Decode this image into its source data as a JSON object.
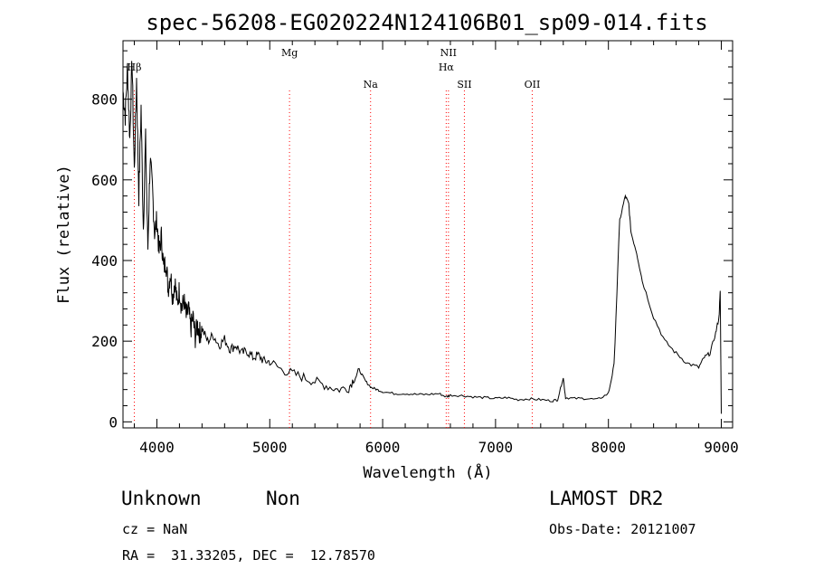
{
  "chart_data": {
    "type": "line",
    "title": "spec-56208-EG020224N124106B01_sp09-014.fits",
    "xlabel": "Wavelength (Å)",
    "ylabel": "Flux (relative)",
    "xlim": [
      3700,
      9100
    ],
    "ylim": [
      -15,
      945
    ],
    "xticks": [
      4000,
      5000,
      6000,
      7000,
      8000,
      9000
    ],
    "yticks": [
      0,
      200,
      400,
      600,
      800
    ],
    "grid": false,
    "series": [
      {
        "x": [
          3700,
          3720,
          3740,
          3760,
          3780,
          3800,
          3820,
          3840,
          3860,
          3880,
          3900,
          3920,
          3940,
          3960,
          3980,
          4000,
          4020,
          4040,
          4060,
          4080,
          4100,
          4120,
          4140,
          4160,
          4180,
          4200,
          4220,
          4240,
          4260,
          4280,
          4300,
          4320,
          4340,
          4360,
          4380,
          4400,
          4450,
          4500,
          4550,
          4600,
          4650,
          4700,
          4750,
          4800,
          4850,
          4900,
          4950,
          5000,
          5100,
          5200,
          5300,
          5400,
          5500,
          5600,
          5700,
          5750,
          5800,
          5850,
          5900,
          5950,
          6000,
          6100,
          6200,
          6300,
          6400,
          6500,
          6563,
          6600,
          6700,
          6800,
          6900,
          7000,
          7100,
          7200,
          7300,
          7400,
          7500,
          7550,
          7600,
          7620,
          7700,
          7800,
          7900,
          8000,
          8050,
          8100,
          8150,
          8180,
          8200,
          8250,
          8300,
          8400,
          8500,
          8600,
          8700,
          8800,
          8850,
          8900,
          8950,
          8980,
          8990,
          9000
        ],
        "y": [
          820,
          760,
          880,
          700,
          900,
          620,
          850,
          560,
          780,
          480,
          700,
          430,
          650,
          580,
          470,
          500,
          420,
          460,
          380,
          400,
          330,
          370,
          310,
          350,
          290,
          330,
          280,
          300,
          260,
          280,
          230,
          260,
          210,
          240,
          220,
          230,
          200,
          215,
          190,
          205,
          180,
          190,
          170,
          175,
          160,
          165,
          150,
          150,
          130,
          120,
          110,
          100,
          90,
          80,
          85,
          110,
          125,
          100,
          85,
          80,
          75,
          70,
          70,
          68,
          68,
          70,
          62,
          66,
          65,
          62,
          60,
          58,
          60,
          55,
          57,
          55,
          52,
          55,
          110,
          60,
          58,
          58,
          55,
          70,
          140,
          500,
          560,
          540,
          470,
          420,
          350,
          260,
          200,
          170,
          145,
          135,
          160,
          170,
          220,
          260,
          325,
          20
        ]
      }
    ],
    "reference_lines": [
      {
        "label": "Mg",
        "x": 5175
      },
      {
        "label": "Na",
        "x": 5893
      },
      {
        "label": "NII",
        "x": 6583
      },
      {
        "label": "Hα",
        "x": 6563
      },
      {
        "label": "SII",
        "x": 6724
      },
      {
        "label": "OII",
        "x": 7325
      },
      {
        "label": "Hβ",
        "x": 3800
      }
    ]
  },
  "footer": {
    "classification": "Unknown",
    "subclass": "Non",
    "survey": "LAMOST DR2",
    "cz": "cz = NaN",
    "obs_date": "Obs-Date: 20121007",
    "coords": "RA =  31.33205, DEC =  12.78570"
  },
  "colors": {
    "spectrum": "#000000",
    "reference_line": "#ff0000"
  }
}
